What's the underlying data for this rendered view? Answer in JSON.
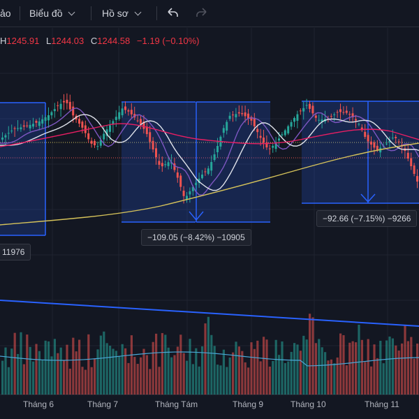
{
  "toolbar": {
    "menu_cut": "ảo",
    "chart_menu": "Biểu đồ",
    "profile_menu": "Hồ sơ"
  },
  "ohlc": {
    "h_label": "H",
    "h_value": "1245.91",
    "l_label": "L",
    "l_value": "1244.03",
    "c_label": "C",
    "c_value": "1244.58",
    "change": "−1.19 (−0.10%)"
  },
  "measure_labels": [
    "11976",
    "−109.05 (−8.42%) −10905",
    "−92.66 (−7.15%) −9266"
  ],
  "x_axis": [
    "Tháng 6",
    "Tháng 7",
    "Tháng Tám",
    "Tháng 9",
    "Tháng 10",
    "Tháng 11"
  ],
  "colors": {
    "up": "#26a69a",
    "down": "#ef5350",
    "box": "#2962ff",
    "ma_white": "#e0e3eb",
    "ma_purple": "#7e57c2",
    "ma_pink": "#e91e63",
    "ma_yellow": "#d6c35a"
  }
}
